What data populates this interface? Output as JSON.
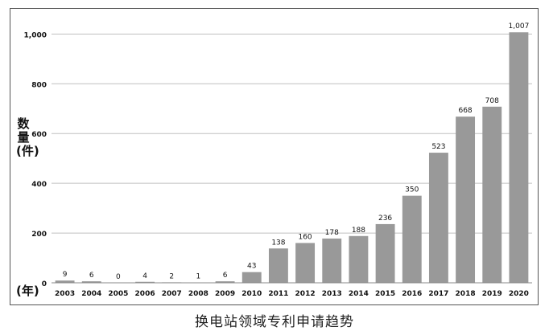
{
  "chart_data": {
    "type": "bar",
    "categories": [
      "2003",
      "2004",
      "2005",
      "2006",
      "2007",
      "2008",
      "2009",
      "2010",
      "2011",
      "2012",
      "2013",
      "2014",
      "2015",
      "2016",
      "2017",
      "2018",
      "2019",
      "2020"
    ],
    "values": [
      9,
      6,
      0,
      4,
      2,
      1,
      6,
      43,
      138,
      160,
      178,
      188,
      236,
      350,
      523,
      668,
      708,
      1007
    ],
    "data_labels": [
      "9",
      "6",
      "0",
      "4",
      "2",
      "1",
      "6",
      "43",
      "138",
      "160",
      "178",
      "188",
      "236",
      "350",
      "523",
      "668",
      "708",
      "1,007"
    ],
    "yticks": [
      "0",
      "200",
      "400",
      "600",
      "800",
      "1,000"
    ],
    "ytick_values": [
      0,
      200,
      400,
      600,
      800,
      1000
    ],
    "ylim": [
      0,
      1040
    ],
    "ylabel": "数量(件)",
    "xlabel": "(年)",
    "caption": "换电站领域专利申请趋势",
    "grid": true,
    "bar_color": "#999999",
    "grid_color": "#bfbfbf"
  }
}
